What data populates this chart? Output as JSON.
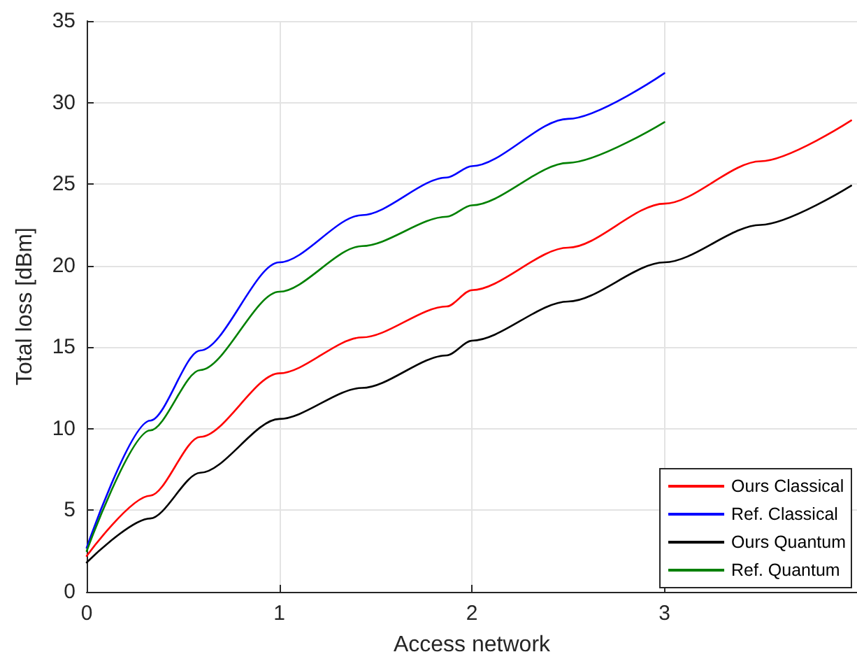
{
  "chart_data": {
    "type": "line",
    "xlabel": "Access network",
    "ylabel": "Total loss [dBm]",
    "xlim": [
      0,
      4
    ],
    "xticks": [
      0,
      1,
      2,
      3
    ],
    "ylim": [
      0,
      35
    ],
    "yticks": [
      0,
      5,
      10,
      15,
      20,
      25,
      30,
      35
    ],
    "grid": true,
    "legend": "bottom right",
    "line_style": "solid",
    "marker": "none",
    "series": [
      {
        "name": "Ours Classical",
        "color": "#ff0000",
        "x": [
          0,
          0.33,
          0.59,
          1,
          1.43,
          1.87,
          2,
          2.5,
          3,
          3.5,
          3.97
        ],
        "values": [
          2.2,
          5.9,
          9.5,
          13.4,
          15.6,
          17.5,
          18.5,
          21.1,
          23.8,
          26.4,
          28.9
        ]
      },
      {
        "name": "Ref. Classical",
        "color": "#0000ff",
        "x": [
          0,
          0.33,
          0.59,
          1,
          1.43,
          1.87,
          2,
          2.5,
          3
        ],
        "values": [
          2.7,
          10.5,
          14.8,
          20.2,
          23.1,
          25.4,
          26.1,
          29.0,
          31.8
        ]
      },
      {
        "name": "Ours Quantum",
        "color": "#000000",
        "x": [
          0,
          0.33,
          0.59,
          1,
          1.43,
          1.87,
          2,
          2.5,
          3,
          3.5,
          3.97
        ],
        "values": [
          1.8,
          4.5,
          7.3,
          10.6,
          12.5,
          14.5,
          15.4,
          17.8,
          20.2,
          22.5,
          24.9
        ]
      },
      {
        "name": "Ref. Quantum",
        "color": "#008000",
        "x": [
          0,
          0.33,
          0.59,
          1,
          1.43,
          1.87,
          2,
          2.5,
          3
        ],
        "values": [
          2.5,
          9.9,
          13.6,
          18.4,
          21.2,
          23.0,
          23.7,
          26.3,
          28.8
        ]
      }
    ]
  }
}
